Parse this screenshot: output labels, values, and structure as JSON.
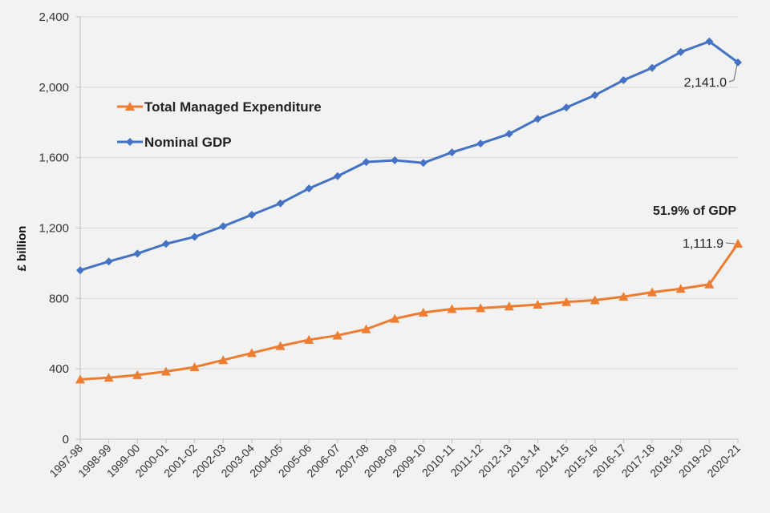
{
  "chart_data": {
    "type": "line",
    "ylabel": "£ billion",
    "ylim": [
      0,
      2400
    ],
    "y_ticks": [
      "0",
      "400",
      "800",
      "1,200",
      "1,600",
      "2,000",
      "2,400"
    ],
    "y_tick_values": [
      0,
      400,
      800,
      1200,
      1600,
      2000,
      2400
    ],
    "grid": "horizontal",
    "legend_position": "top-left",
    "categories": [
      "1997-98",
      "1998-99",
      "1999-00",
      "2000-01",
      "2001-02",
      "2002-03",
      "2003-04",
      "2004-05",
      "2005-06",
      "2006-07",
      "2007-08",
      "2008-09",
      "2009-10",
      "2010-11",
      "2011-12",
      "2012-13",
      "2013-14",
      "2014-15",
      "2015-16",
      "2016-17",
      "2017-18",
      "2018-19",
      "2019-20",
      "2020-21"
    ],
    "series": [
      {
        "name": "Total Managed Expenditure",
        "color": "#ED7D31",
        "marker": "triangle",
        "values": [
          340,
          350,
          365,
          385,
          410,
          450,
          490,
          530,
          565,
          590,
          625,
          685,
          720,
          740,
          745,
          755,
          765,
          780,
          790,
          810,
          835,
          855,
          880,
          1111.9
        ]
      },
      {
        "name": "Nominal GDP",
        "color": "#4472C4",
        "marker": "diamond",
        "values": [
          960,
          1010,
          1055,
          1110,
          1150,
          1210,
          1275,
          1340,
          1425,
          1495,
          1575,
          1585,
          1570,
          1630,
          1680,
          1735,
          1820,
          1885,
          1955,
          2040,
          2110,
          2200,
          2260,
          2141.0
        ]
      }
    ],
    "annotations": {
      "gdp_last": "2,141.0",
      "tme_last": "1,111.9",
      "share": "51.9% of GDP"
    }
  }
}
